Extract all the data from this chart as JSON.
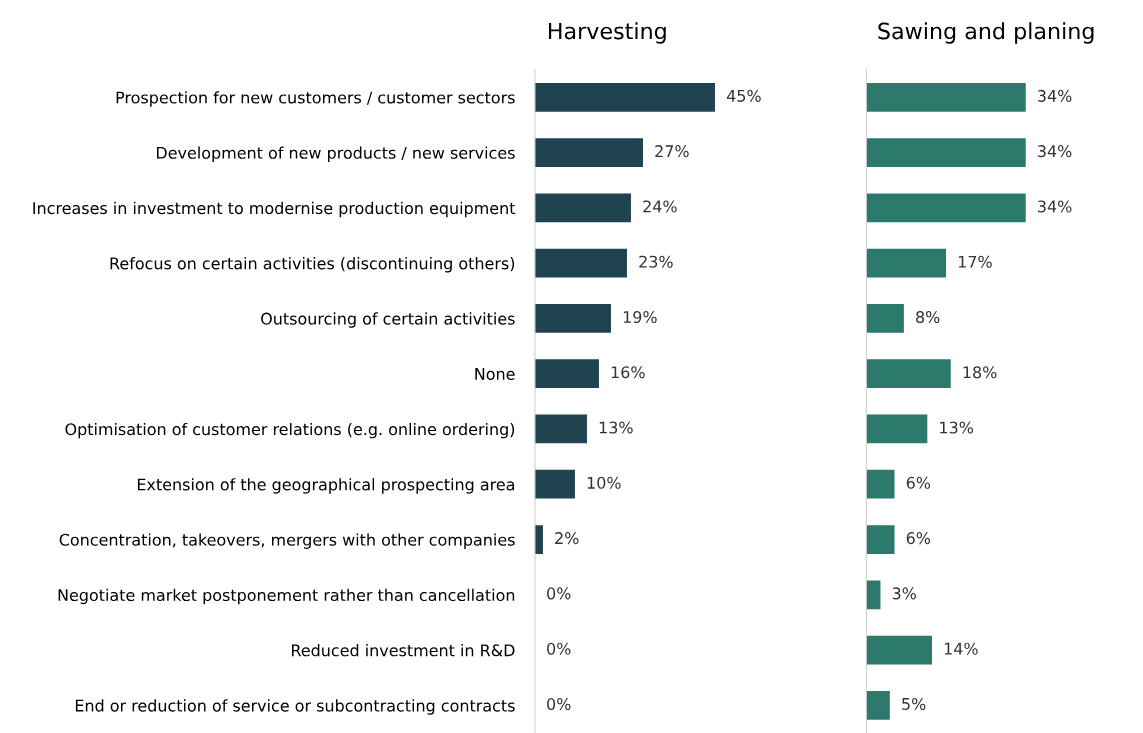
{
  "chart_data": [
    {
      "type": "bar",
      "orientation": "horizontal",
      "title": "Harvesting",
      "tick_labels": "y",
      "grid": false,
      "legend": false,
      "categories": [
        "Prospection for new customers / customer sectors",
        "Development of new products / new services",
        "Increases in investment to modernise production equipment",
        "Refocus on certain activities (discontinuing others)",
        "Outsourcing of certain activities",
        "None",
        "Optimisation of customer relations (e.g. online ordering)",
        "Extension of the geographical prospecting area",
        "Concentration, takeovers, mergers with other companies",
        "Negotiate market postponement rather than cancellation",
        "Reduced investment in R&D",
        "End or reduction of service or subcontracting contracts"
      ],
      "series": [
        {
          "color": "#1f4450",
          "values": [
            45,
            27,
            24,
            23,
            19,
            16,
            13,
            10,
            2,
            0,
            0,
            0
          ],
          "value_labels": [
            "45%",
            "27%",
            "24%",
            "23%",
            "19%",
            "16%",
            "13%",
            "10%",
            "2%",
            "0%",
            "0%",
            "0%"
          ]
        }
      ]
    },
    {
      "type": "bar",
      "orientation": "horizontal",
      "title": "Sawing and planing",
      "tick_labels": false,
      "grid": false,
      "legend": false,
      "series": [
        {
          "color": "#2c7a6b",
          "values": [
            34,
            34,
            34,
            17,
            8,
            18,
            13,
            6,
            6,
            3,
            14,
            5
          ],
          "value_labels": [
            "34%",
            "34%",
            "34%",
            "17%",
            "8%",
            "18%",
            "13%",
            "6%",
            "6%",
            "3%",
            "14%",
            "5%"
          ]
        }
      ]
    }
  ]
}
